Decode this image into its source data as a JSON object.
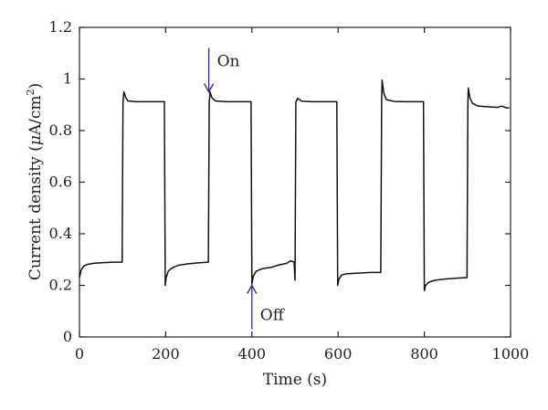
{
  "chart_data": {
    "type": "line",
    "title": "",
    "xlabel": "Time (s)",
    "ylabel_main": "Current density (",
    "ylabel_mu": "μ",
    "ylabel_unit": "A/cm",
    "ylabel_sup": "2",
    "ylabel_close": ")",
    "xlim": [
      0,
      1000
    ],
    "ylim": [
      0,
      1.2
    ],
    "x_ticks": [
      "0",
      "200",
      "400",
      "600",
      "800",
      "1000"
    ],
    "y_ticks": [
      "0",
      "0.2",
      "0.4",
      "0.6",
      "0.8",
      "1",
      "1.2"
    ],
    "grid": false,
    "colors": {
      "line": "#111111",
      "arrow": "#2b2b8c",
      "axis": "#222222"
    },
    "series": [
      {
        "points": [
          [
            0,
            0.23
          ],
          [
            4,
            0.26
          ],
          [
            10,
            0.275
          ],
          [
            20,
            0.282
          ],
          [
            35,
            0.286
          ],
          [
            55,
            0.288
          ],
          [
            80,
            0.29
          ],
          [
            99,
            0.29
          ],
          [
            101,
            0.91
          ],
          [
            103,
            0.95
          ],
          [
            107,
            0.93
          ],
          [
            112,
            0.915
          ],
          [
            130,
            0.912
          ],
          [
            160,
            0.912
          ],
          [
            197,
            0.912
          ],
          [
            199,
            0.2
          ],
          [
            201,
            0.23
          ],
          [
            206,
            0.255
          ],
          [
            215,
            0.268
          ],
          [
            230,
            0.278
          ],
          [
            250,
            0.283
          ],
          [
            275,
            0.287
          ],
          [
            299,
            0.29
          ],
          [
            301,
            0.91
          ],
          [
            303,
            0.95
          ],
          [
            307,
            0.928
          ],
          [
            315,
            0.915
          ],
          [
            340,
            0.912
          ],
          [
            370,
            0.912
          ],
          [
            398,
            0.912
          ],
          [
            400,
            0.205
          ],
          [
            403,
            0.235
          ],
          [
            410,
            0.255
          ],
          [
            425,
            0.265
          ],
          [
            445,
            0.27
          ],
          [
            465,
            0.28
          ],
          [
            480,
            0.285
          ],
          [
            490,
            0.295
          ],
          [
            498,
            0.29
          ],
          [
            500,
            0.22
          ],
          [
            502,
            0.91
          ],
          [
            506,
            0.925
          ],
          [
            515,
            0.914
          ],
          [
            540,
            0.912
          ],
          [
            570,
            0.912
          ],
          [
            597,
            0.912
          ],
          [
            599,
            0.2
          ],
          [
            602,
            0.225
          ],
          [
            608,
            0.24
          ],
          [
            620,
            0.245
          ],
          [
            650,
            0.248
          ],
          [
            675,
            0.25
          ],
          [
            699,
            0.25
          ],
          [
            701,
            0.91
          ],
          [
            702,
            0.995
          ],
          [
            706,
            0.945
          ],
          [
            712,
            0.92
          ],
          [
            730,
            0.913
          ],
          [
            760,
            0.912
          ],
          [
            798,
            0.912
          ],
          [
            800,
            0.18
          ],
          [
            803,
            0.2
          ],
          [
            810,
            0.212
          ],
          [
            825,
            0.22
          ],
          [
            850,
            0.225
          ],
          [
            875,
            0.228
          ],
          [
            899,
            0.23
          ],
          [
            901,
            0.9
          ],
          [
            902,
            0.965
          ],
          [
            906,
            0.925
          ],
          [
            912,
            0.905
          ],
          [
            925,
            0.895
          ],
          [
            950,
            0.892
          ],
          [
            970,
            0.89
          ],
          [
            980,
            0.895
          ],
          [
            990,
            0.888
          ],
          [
            997,
            0.888
          ]
        ]
      }
    ],
    "annotations": [
      {
        "text": "On",
        "x": 300,
        "y": 0.95,
        "direction": "down"
      },
      {
        "text": "Off",
        "x": 400,
        "y": 0.2,
        "direction": "up"
      }
    ]
  }
}
